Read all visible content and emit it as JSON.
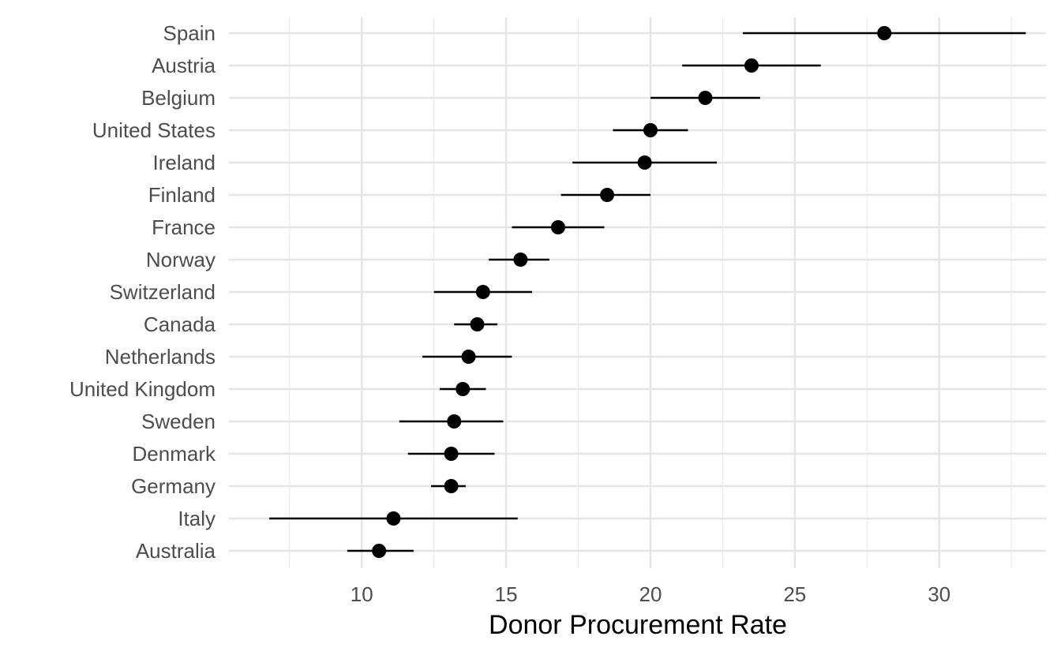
{
  "chart_data": {
    "type": "scatter",
    "title": "",
    "xlabel": "Donor Procurement Rate",
    "ylabel": "",
    "xlim": [
      5.4,
      33.7
    ],
    "x_ticks": [
      10,
      15,
      20,
      25,
      30
    ],
    "x_tick_labels": [
      "10",
      "15",
      "20",
      "25",
      "30"
    ],
    "grid": true,
    "categories": [
      "Spain",
      "Austria",
      "Belgium",
      "United States",
      "Ireland",
      "Finland",
      "France",
      "Norway",
      "Switzerland",
      "Canada",
      "Netherlands",
      "United Kingdom",
      "Sweden",
      "Denmark",
      "Germany",
      "Italy",
      "Australia"
    ],
    "values": [
      28.1,
      23.5,
      21.9,
      20.0,
      19.8,
      18.5,
      16.8,
      15.5,
      14.2,
      14.0,
      13.7,
      13.5,
      13.2,
      13.1,
      13.1,
      11.1,
      10.6
    ],
    "lower": [
      23.2,
      21.1,
      20.0,
      18.7,
      17.3,
      16.9,
      15.2,
      14.4,
      12.5,
      13.2,
      12.1,
      12.7,
      11.3,
      11.6,
      12.4,
      6.8,
      9.5
    ],
    "upper": [
      33.0,
      25.9,
      23.8,
      21.3,
      22.3,
      20.0,
      18.4,
      16.5,
      15.9,
      14.7,
      15.2,
      14.3,
      14.9,
      14.6,
      13.6,
      15.4,
      11.8
    ]
  }
}
